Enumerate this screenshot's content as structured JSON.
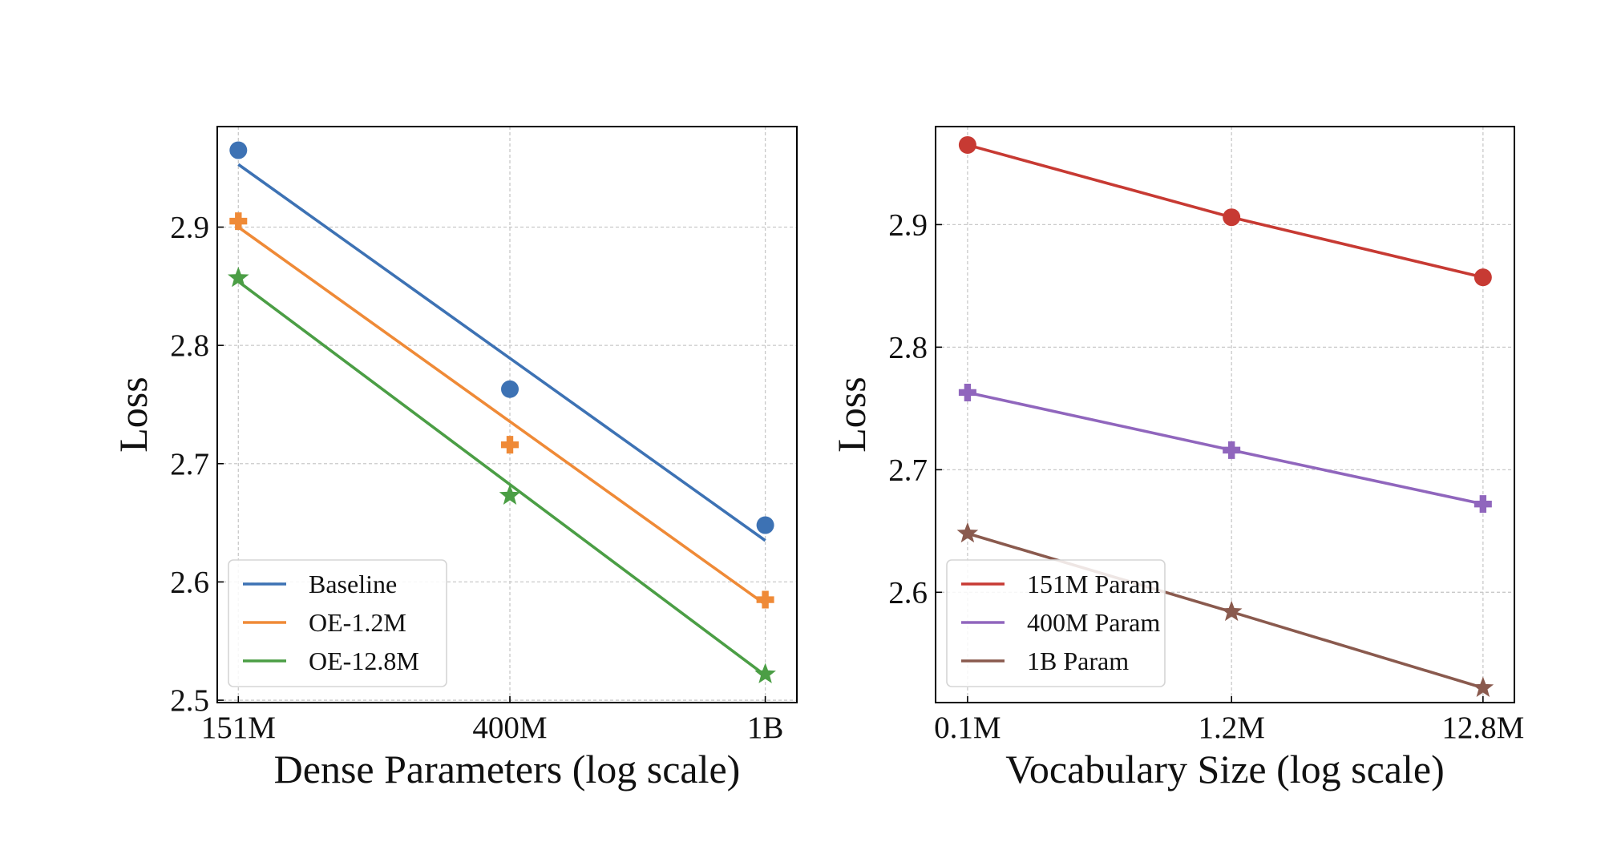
{
  "chart_data": [
    {
      "type": "scatter",
      "xlabel": "Dense Parameters (log scale)",
      "ylabel": "Loss",
      "x_scale": "log",
      "x_ticks": [
        151,
        400,
        1000
      ],
      "x_tick_labels": [
        "151M",
        "400M",
        "1B"
      ],
      "y_ticks": [
        2.5,
        2.6,
        2.7,
        2.8,
        2.9
      ],
      "y_tick_labels": [
        "2.5",
        "2.6",
        "2.7",
        "2.8",
        "2.9"
      ],
      "ylim": [
        2.498,
        2.985
      ],
      "xlim": [
        140,
        1120
      ],
      "grid": true,
      "legend_position": "lower-left",
      "fit_lines": true,
      "series": [
        {
          "name": "Baseline",
          "color": "#3d72b4",
          "marker": "circle",
          "x": [
            151,
            400,
            1000
          ],
          "y": [
            2.965,
            2.763,
            2.648
          ],
          "fit": [
            2.953,
            2.635
          ]
        },
        {
          "name": "OE-1.2M",
          "color": "#ef8a37",
          "marker": "plus",
          "x": [
            151,
            400,
            1000
          ],
          "y": [
            2.905,
            2.716,
            2.585
          ],
          "fit": [
            2.9,
            2.581
          ]
        },
        {
          "name": "OE-12.8M",
          "color": "#4b9e45",
          "marker": "star",
          "x": [
            151,
            400,
            1000
          ],
          "y": [
            2.857,
            2.673,
            2.522
          ],
          "fit": [
            2.854,
            2.521
          ]
        }
      ]
    },
    {
      "type": "line",
      "xlabel": "Vocabulary Size (log scale)",
      "ylabel": "Loss",
      "x_scale": "log",
      "x_ticks": [
        0.1,
        1.2,
        12.8
      ],
      "x_tick_labels": [
        "0.1M",
        "1.2M",
        "12.8M"
      ],
      "y_ticks": [
        2.6,
        2.7,
        2.8,
        2.9
      ],
      "y_tick_labels": [
        "2.6",
        "2.7",
        "2.8",
        "2.9"
      ],
      "ylim": [
        2.51,
        2.98
      ],
      "xlim": [
        0.074,
        17.2
      ],
      "grid": true,
      "legend_position": "lower-left",
      "series": [
        {
          "name": "151M Param",
          "color": "#c73a33",
          "marker": "circle",
          "x": [
            0.1,
            1.2,
            12.8
          ],
          "y": [
            2.965,
            2.906,
            2.857
          ]
        },
        {
          "name": "400M Param",
          "color": "#9066bd",
          "marker": "plus",
          "x": [
            0.1,
            1.2,
            12.8
          ],
          "y": [
            2.763,
            2.716,
            2.672
          ]
        },
        {
          "name": "1B Param",
          "color": "#8a5a4e",
          "marker": "star",
          "x": [
            0.1,
            1.2,
            12.8
          ],
          "y": [
            2.648,
            2.584,
            2.522
          ]
        }
      ]
    }
  ]
}
